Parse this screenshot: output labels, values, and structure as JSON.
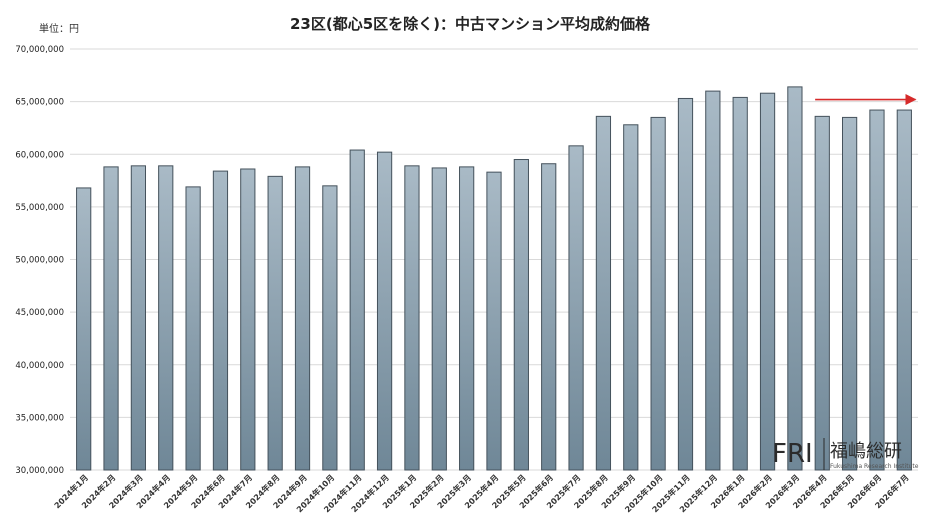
{
  "chart_data": {
    "type": "bar",
    "title": "23区(都心5区を除く)：中古マンション平均成約価格",
    "unit_label": "単位：円",
    "xlabel": "",
    "ylabel": "",
    "ylim": [
      30000000,
      70000000
    ],
    "yticks": [
      30000000,
      35000000,
      40000000,
      45000000,
      50000000,
      55000000,
      60000000,
      65000000,
      70000000
    ],
    "ytick_labels": [
      "30,000,000",
      "35,000,000",
      "40,000,000",
      "45,000,000",
      "50,000,000",
      "55,000,000",
      "60,000,000",
      "65,000,000",
      "70,000,000"
    ],
    "grid": true,
    "categories": [
      "2024年1月",
      "2024年2月",
      "2024年3月",
      "2024年4月",
      "2024年5月",
      "2024年6月",
      "2024年7月",
      "2024年8月",
      "2024年9月",
      "2024年10月",
      "2024年11月",
      "2024年12月",
      "2025年1月",
      "2025年2月",
      "2025年3月",
      "2025年4月",
      "2025年5月",
      "2025年6月",
      "2025年7月",
      "2025年8月",
      "2025年9月",
      "2025年10月",
      "2025年11月",
      "2025年12月",
      "2026年1月",
      "2026年2月",
      "2026年3月",
      "2026年4月",
      "2026年5月",
      "2026年6月",
      "2026年7月"
    ],
    "values": [
      56800000,
      58800000,
      58900000,
      58900000,
      56900000,
      58400000,
      58600000,
      57900000,
      58800000,
      57000000,
      60400000,
      60200000,
      58900000,
      58700000,
      58800000,
      58300000,
      59500000,
      59100000,
      60800000,
      63600000,
      62800000,
      63500000,
      65300000,
      66000000,
      65400000,
      65800000,
      66400000,
      63600000,
      63500000,
      64200000,
      64200000
    ],
    "bar_color": "#8aa0b0",
    "bar_color_top": "#a9bac6",
    "bar_color_bottom": "#6f8797",
    "annotation": {
      "type": "arrow",
      "from_category": "2026年4月",
      "to_category": "2026年7月",
      "value": 65200000,
      "color": "#d62a2a"
    }
  },
  "logo": {
    "mark": "FRI",
    "name": "福嶋総研",
    "subtitle": "Fukushima Research Institute"
  }
}
